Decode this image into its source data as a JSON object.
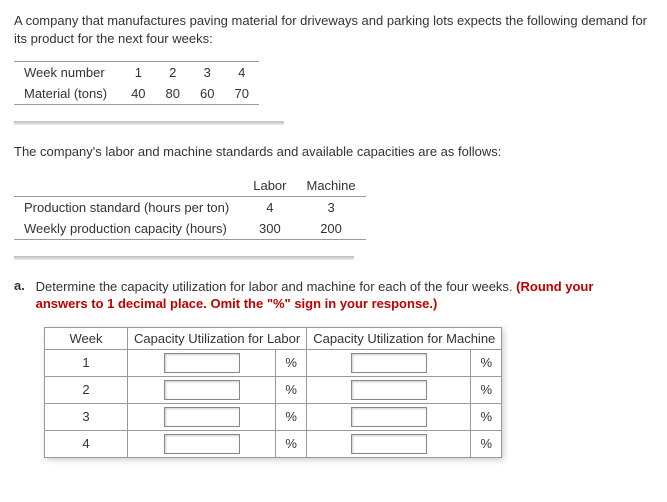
{
  "intro1": "A company that manufactures paving material for driveways and parking lots expects the following demand for its product for the next four weeks:",
  "demand": {
    "row_label_week": "Week number",
    "row_label_mat": "Material (tons)",
    "weeks": [
      "1",
      "2",
      "3",
      "4"
    ],
    "tons": [
      "40",
      "80",
      "60",
      "70"
    ]
  },
  "intro2": "The company's labor and machine standards and available capacities are as follows:",
  "std": {
    "col_labor": "Labor",
    "col_machine": "Machine",
    "row_std": "Production standard (hours per ton)",
    "row_cap": "Weekly production capacity (hours)",
    "std_vals": [
      "4",
      "3"
    ],
    "cap_vals": [
      "300",
      "200"
    ]
  },
  "question": {
    "letter": "a.",
    "text": "Determine the capacity utilization for labor and machine for each of the four weeks. ",
    "red_text": "(Round your answers to 1 decimal place. Omit the \"%\" sign in your response.)"
  },
  "answer": {
    "col_week": "Week",
    "col_labor": "Capacity Utilization for Labor",
    "col_machine": "Capacity Utilization for Machine",
    "weeks": [
      "1",
      "2",
      "3",
      "4"
    ],
    "pct": "%"
  },
  "colors": {
    "text": "#333333",
    "red": "#c00000",
    "border": "#999999",
    "background": "#ffffff"
  }
}
